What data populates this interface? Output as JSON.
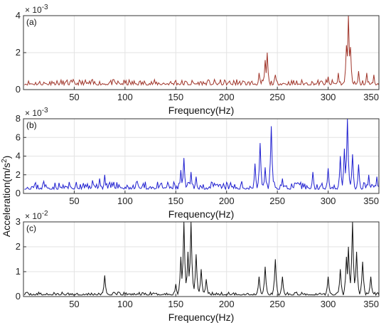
{
  "figure": {
    "ylabel": "Acceleration(m/s",
    "ylabel_sup": "2",
    "ylabel_close": ")"
  },
  "chart_data": [
    {
      "type": "line",
      "panel_label": "(a)",
      "exponent": "× 10",
      "exponent_power": "-3",
      "xlabel": "Frequency(Hz)",
      "xlim": [
        0,
        350
      ],
      "ylim": [
        0,
        4
      ],
      "xticks": [
        50,
        100,
        150,
        200,
        250,
        300,
        350
      ],
      "yticks": [
        0,
        2,
        4
      ],
      "grid": true,
      "color": "#a0352a",
      "noise": {
        "base": 0.25,
        "amp": 0.3,
        "seed": 11
      },
      "peaks": [
        [
          28,
          0.45
        ],
        [
          60,
          0.35
        ],
        [
          85,
          0.4
        ],
        [
          120,
          0.35
        ],
        [
          150,
          0.5
        ],
        [
          210,
          0.55
        ],
        [
          232,
          0.9
        ],
        [
          238,
          1.6
        ],
        [
          240,
          2.0
        ],
        [
          248,
          0.8
        ],
        [
          300,
          0.7
        ],
        [
          310,
          0.9
        ],
        [
          318,
          2.4
        ],
        [
          320,
          4.0
        ],
        [
          322,
          2.3
        ],
        [
          330,
          1.0
        ],
        [
          338,
          0.9
        ],
        [
          345,
          0.8
        ]
      ]
    },
    {
      "type": "line",
      "panel_label": "(b)",
      "exponent": "× 10",
      "exponent_power": "-3",
      "xlabel": "Frequency(Hz)",
      "xlim": [
        0,
        350
      ],
      "ylim": [
        0,
        8
      ],
      "xticks": [
        50,
        100,
        150,
        200,
        250,
        300,
        350
      ],
      "yticks": [
        0,
        2,
        4,
        6,
        8
      ],
      "grid": true,
      "color": "#1f1fd0",
      "noise": {
        "base": 0.45,
        "amp": 0.8,
        "seed": 23
      },
      "peaks": [
        [
          20,
          1.3
        ],
        [
          45,
          1.1
        ],
        [
          68,
          1.4
        ],
        [
          75,
          1.6
        ],
        [
          80,
          2.0
        ],
        [
          92,
          1.2
        ],
        [
          112,
          1.3
        ],
        [
          155,
          2.5
        ],
        [
          158,
          3.8
        ],
        [
          165,
          2.3
        ],
        [
          170,
          1.8
        ],
        [
          215,
          1.3
        ],
        [
          228,
          3.2
        ],
        [
          233,
          5.4
        ],
        [
          238,
          2.8
        ],
        [
          244,
          7.2
        ],
        [
          255,
          1.6
        ],
        [
          285,
          2.3
        ],
        [
          300,
          2.7
        ],
        [
          312,
          4.0
        ],
        [
          316,
          4.8
        ],
        [
          319,
          8.0
        ],
        [
          324,
          4.2
        ],
        [
          330,
          3.1
        ],
        [
          340,
          2.0
        ],
        [
          348,
          1.8
        ]
      ]
    },
    {
      "type": "line",
      "panel_label": "(c)",
      "exponent": "× 10",
      "exponent_power": "-2",
      "xlabel": "Frequency(Hz)",
      "xlim": [
        0,
        350
      ],
      "ylim": [
        0,
        3
      ],
      "xticks": [
        50,
        100,
        150,
        200,
        250,
        300,
        350
      ],
      "yticks": [
        0,
        1,
        2,
        3
      ],
      "grid": true,
      "color": "#111111",
      "noise": {
        "base": 0.06,
        "amp": 0.12,
        "seed": 37
      },
      "peaks": [
        [
          80,
          0.85
        ],
        [
          150,
          0.5
        ],
        [
          155,
          1.6
        ],
        [
          158,
          3.0
        ],
        [
          162,
          1.8
        ],
        [
          165,
          3.0
        ],
        [
          170,
          1.7
        ],
        [
          175,
          1.1
        ],
        [
          180,
          0.7
        ],
        [
          232,
          0.8
        ],
        [
          238,
          1.2
        ],
        [
          248,
          1.5
        ],
        [
          255,
          0.8
        ],
        [
          300,
          0.8
        ],
        [
          312,
          1.1
        ],
        [
          318,
          1.6
        ],
        [
          320,
          2.0
        ],
        [
          324,
          3.0
        ],
        [
          328,
          1.8
        ],
        [
          334,
          1.4
        ],
        [
          342,
          0.8
        ]
      ]
    }
  ]
}
